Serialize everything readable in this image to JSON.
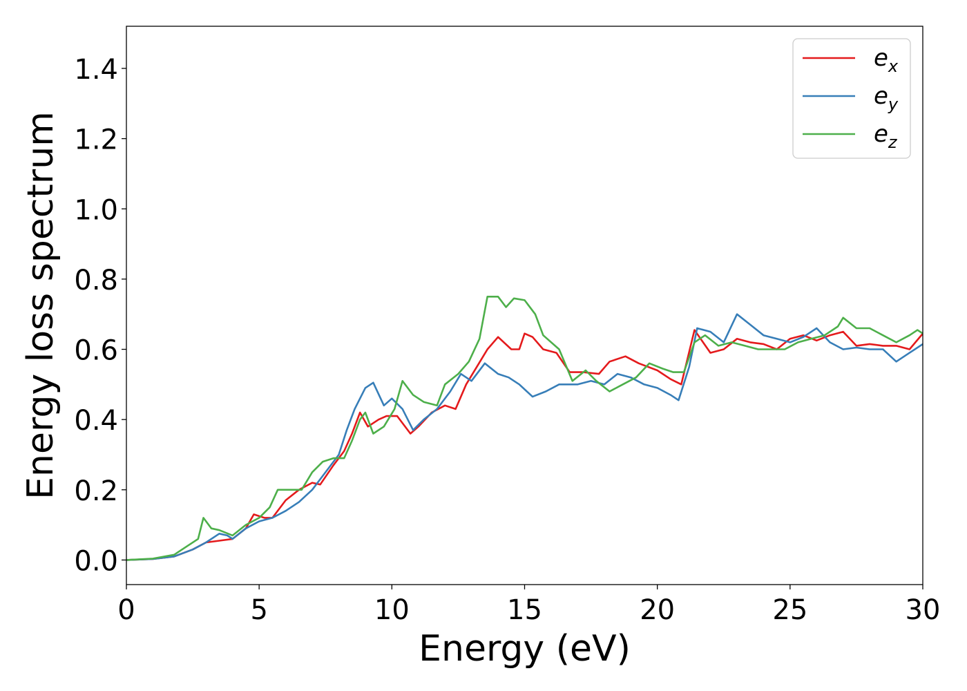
{
  "chart_data": {
    "type": "line",
    "title": "",
    "xlabel": "Energy (eV)",
    "ylabel": "Energy loss spectrum",
    "xlim": [
      0,
      30
    ],
    "ylim": [
      -0.07,
      1.52
    ],
    "x_ticks": [
      0,
      5,
      10,
      15,
      20,
      25,
      30
    ],
    "x_tick_labels": [
      "0",
      "5",
      "10",
      "15",
      "20",
      "25",
      "30"
    ],
    "y_ticks": [
      0.0,
      0.2,
      0.4,
      0.6,
      0.8,
      1.0,
      1.2,
      1.4
    ],
    "y_tick_labels": [
      "0.0",
      "0.2",
      "0.4",
      "0.6",
      "0.8",
      "1.0",
      "1.2",
      "1.4"
    ],
    "grid": false,
    "legend_position": "top-right",
    "series": [
      {
        "name": "e_x",
        "legend_base": "e",
        "legend_sub": "x",
        "color": "#e41a1c",
        "points": [
          [
            0,
            0
          ],
          [
            1,
            0.003
          ],
          [
            1.8,
            0.01
          ],
          [
            2.5,
            0.03
          ],
          [
            3.0,
            0.05
          ],
          [
            3.5,
            0.055
          ],
          [
            4.0,
            0.06
          ],
          [
            4.5,
            0.09
          ],
          [
            4.8,
            0.13
          ],
          [
            5.2,
            0.12
          ],
          [
            5.5,
            0.12
          ],
          [
            6.0,
            0.17
          ],
          [
            6.5,
            0.2
          ],
          [
            7.0,
            0.22
          ],
          [
            7.3,
            0.215
          ],
          [
            7.8,
            0.27
          ],
          [
            8.2,
            0.31
          ],
          [
            8.5,
            0.36
          ],
          [
            8.8,
            0.42
          ],
          [
            9.1,
            0.38
          ],
          [
            9.5,
            0.4
          ],
          [
            9.8,
            0.41
          ],
          [
            10.2,
            0.41
          ],
          [
            10.7,
            0.36
          ],
          [
            11.0,
            0.38
          ],
          [
            11.5,
            0.42
          ],
          [
            12.0,
            0.44
          ],
          [
            12.4,
            0.43
          ],
          [
            12.8,
            0.5
          ],
          [
            13.2,
            0.55
          ],
          [
            13.6,
            0.6
          ],
          [
            14.0,
            0.635
          ],
          [
            14.5,
            0.6
          ],
          [
            14.8,
            0.6
          ],
          [
            15.0,
            0.645
          ],
          [
            15.3,
            0.635
          ],
          [
            15.7,
            0.6
          ],
          [
            16.2,
            0.59
          ],
          [
            16.7,
            0.535
          ],
          [
            17.2,
            0.535
          ],
          [
            17.8,
            0.53
          ],
          [
            18.2,
            0.565
          ],
          [
            18.8,
            0.58
          ],
          [
            19.3,
            0.56
          ],
          [
            20.0,
            0.54
          ],
          [
            20.5,
            0.515
          ],
          [
            20.9,
            0.5
          ],
          [
            21.4,
            0.655
          ],
          [
            22.0,
            0.59
          ],
          [
            22.5,
            0.6
          ],
          [
            23.0,
            0.63
          ],
          [
            23.5,
            0.62
          ],
          [
            24.0,
            0.615
          ],
          [
            24.5,
            0.6
          ],
          [
            25.0,
            0.63
          ],
          [
            25.5,
            0.64
          ],
          [
            26.0,
            0.625
          ],
          [
            26.5,
            0.64
          ],
          [
            27.0,
            0.65
          ],
          [
            27.5,
            0.61
          ],
          [
            28.0,
            0.615
          ],
          [
            28.5,
            0.61
          ],
          [
            29.0,
            0.61
          ],
          [
            29.5,
            0.6
          ],
          [
            30.0,
            0.645
          ]
        ]
      },
      {
        "name": "e_y",
        "legend_base": "e",
        "legend_sub": "y",
        "color": "#377eb8",
        "points": [
          [
            0,
            0
          ],
          [
            1,
            0.003
          ],
          [
            1.8,
            0.01
          ],
          [
            2.5,
            0.03
          ],
          [
            3.0,
            0.05
          ],
          [
            3.5,
            0.075
          ],
          [
            3.8,
            0.07
          ],
          [
            4.0,
            0.06
          ],
          [
            4.5,
            0.09
          ],
          [
            5.0,
            0.11
          ],
          [
            5.5,
            0.12
          ],
          [
            6.0,
            0.14
          ],
          [
            6.5,
            0.165
          ],
          [
            7.0,
            0.2
          ],
          [
            7.5,
            0.25
          ],
          [
            8.0,
            0.3
          ],
          [
            8.3,
            0.37
          ],
          [
            8.6,
            0.43
          ],
          [
            9.0,
            0.49
          ],
          [
            9.3,
            0.505
          ],
          [
            9.7,
            0.44
          ],
          [
            10.0,
            0.46
          ],
          [
            10.4,
            0.43
          ],
          [
            10.8,
            0.37
          ],
          [
            11.2,
            0.4
          ],
          [
            11.7,
            0.43
          ],
          [
            12.2,
            0.48
          ],
          [
            12.6,
            0.53
          ],
          [
            13.0,
            0.51
          ],
          [
            13.5,
            0.56
          ],
          [
            14.0,
            0.53
          ],
          [
            14.4,
            0.52
          ],
          [
            14.8,
            0.5
          ],
          [
            15.3,
            0.465
          ],
          [
            15.8,
            0.48
          ],
          [
            16.3,
            0.5
          ],
          [
            17.0,
            0.5
          ],
          [
            17.5,
            0.51
          ],
          [
            18.0,
            0.5
          ],
          [
            18.5,
            0.53
          ],
          [
            19.0,
            0.52
          ],
          [
            19.5,
            0.5
          ],
          [
            20.0,
            0.49
          ],
          [
            20.5,
            0.47
          ],
          [
            20.8,
            0.455
          ],
          [
            21.2,
            0.55
          ],
          [
            21.5,
            0.66
          ],
          [
            22.0,
            0.65
          ],
          [
            22.5,
            0.62
          ],
          [
            23.0,
            0.7
          ],
          [
            23.5,
            0.67
          ],
          [
            24.0,
            0.64
          ],
          [
            24.5,
            0.63
          ],
          [
            25.0,
            0.62
          ],
          [
            25.5,
            0.635
          ],
          [
            26.0,
            0.66
          ],
          [
            26.5,
            0.62
          ],
          [
            27.0,
            0.6
          ],
          [
            27.5,
            0.605
          ],
          [
            28.0,
            0.6
          ],
          [
            28.5,
            0.6
          ],
          [
            29.0,
            0.565
          ],
          [
            29.5,
            0.59
          ],
          [
            30.0,
            0.615
          ]
        ]
      },
      {
        "name": "e_z",
        "legend_base": "e",
        "legend_sub": "z",
        "color": "#4daf4a",
        "points": [
          [
            0,
            0
          ],
          [
            1,
            0.004
          ],
          [
            1.8,
            0.015
          ],
          [
            2.3,
            0.04
          ],
          [
            2.7,
            0.06
          ],
          [
            2.9,
            0.12
          ],
          [
            3.2,
            0.09
          ],
          [
            3.5,
            0.085
          ],
          [
            4.0,
            0.07
          ],
          [
            4.5,
            0.1
          ],
          [
            5.0,
            0.12
          ],
          [
            5.4,
            0.15
          ],
          [
            5.7,
            0.2
          ],
          [
            6.2,
            0.2
          ],
          [
            6.6,
            0.2
          ],
          [
            7.0,
            0.25
          ],
          [
            7.4,
            0.28
          ],
          [
            7.8,
            0.29
          ],
          [
            8.2,
            0.29
          ],
          [
            8.5,
            0.34
          ],
          [
            8.8,
            0.4
          ],
          [
            9.0,
            0.42
          ],
          [
            9.3,
            0.36
          ],
          [
            9.7,
            0.38
          ],
          [
            10.1,
            0.43
          ],
          [
            10.4,
            0.51
          ],
          [
            10.8,
            0.47
          ],
          [
            11.2,
            0.45
          ],
          [
            11.7,
            0.44
          ],
          [
            12.0,
            0.5
          ],
          [
            12.5,
            0.53
          ],
          [
            12.9,
            0.565
          ],
          [
            13.3,
            0.63
          ],
          [
            13.6,
            0.75
          ],
          [
            14.0,
            0.75
          ],
          [
            14.3,
            0.72
          ],
          [
            14.6,
            0.745
          ],
          [
            15.0,
            0.74
          ],
          [
            15.4,
            0.7
          ],
          [
            15.7,
            0.64
          ],
          [
            16.3,
            0.6
          ],
          [
            16.8,
            0.51
          ],
          [
            17.3,
            0.54
          ],
          [
            17.7,
            0.51
          ],
          [
            18.2,
            0.48
          ],
          [
            18.7,
            0.5
          ],
          [
            19.2,
            0.52
          ],
          [
            19.7,
            0.56
          ],
          [
            20.2,
            0.545
          ],
          [
            20.6,
            0.535
          ],
          [
            21.0,
            0.535
          ],
          [
            21.4,
            0.62
          ],
          [
            21.8,
            0.64
          ],
          [
            22.3,
            0.61
          ],
          [
            22.8,
            0.62
          ],
          [
            23.3,
            0.61
          ],
          [
            23.8,
            0.6
          ],
          [
            24.3,
            0.6
          ],
          [
            24.8,
            0.6
          ],
          [
            25.3,
            0.62
          ],
          [
            25.8,
            0.63
          ],
          [
            26.3,
            0.64
          ],
          [
            26.8,
            0.665
          ],
          [
            27.0,
            0.69
          ],
          [
            27.5,
            0.66
          ],
          [
            28.0,
            0.66
          ],
          [
            28.5,
            0.64
          ],
          [
            29.0,
            0.62
          ],
          [
            29.5,
            0.64
          ],
          [
            29.8,
            0.655
          ],
          [
            30.0,
            0.645
          ]
        ]
      }
    ]
  }
}
